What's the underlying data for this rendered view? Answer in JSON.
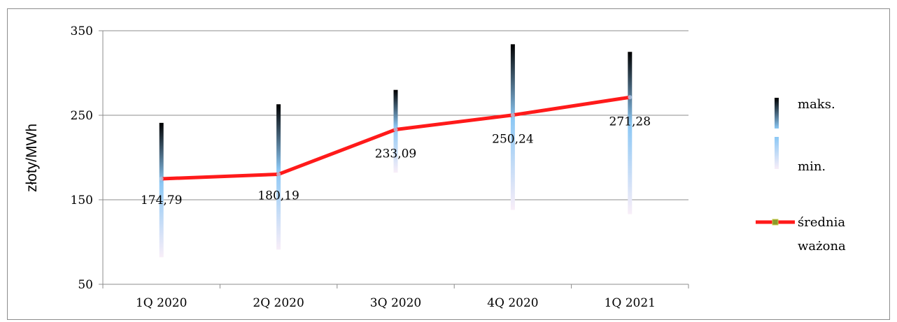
{
  "chart_data": {
    "type": "line",
    "ylabel": "złoty/MWh",
    "ylim": [
      50,
      350
    ],
    "yticks": [
      50,
      150,
      250,
      350
    ],
    "categories": [
      "1Q 2020",
      "2Q 2020",
      "3Q 2020",
      "4Q 2020",
      "1Q 2021"
    ],
    "series": [
      {
        "name": "maks.",
        "values": [
          241,
          263,
          280,
          334,
          325
        ]
      },
      {
        "name": "min.",
        "values": [
          82,
          91,
          182,
          138,
          133
        ]
      },
      {
        "name": "średnia ważona",
        "values": [
          174.79,
          180.19,
          233.09,
          250.24,
          271.28
        ]
      }
    ],
    "data_labels": [
      "174,79",
      "180,19",
      "233,09",
      "250,24",
      "271,28"
    ],
    "legend": {
      "position": "right",
      "max_label": "maks.",
      "min_label": "min.",
      "avg_label_line1": "średnia",
      "avg_label_line2": "ważona"
    },
    "grid": true,
    "colors": {
      "average_line": "#ff1a1a",
      "bar_top": "#000000",
      "bar_mid": "#8cc8f5",
      "bar_bottom": "#f8eef8",
      "grid": "#8c8c8c"
    }
  }
}
